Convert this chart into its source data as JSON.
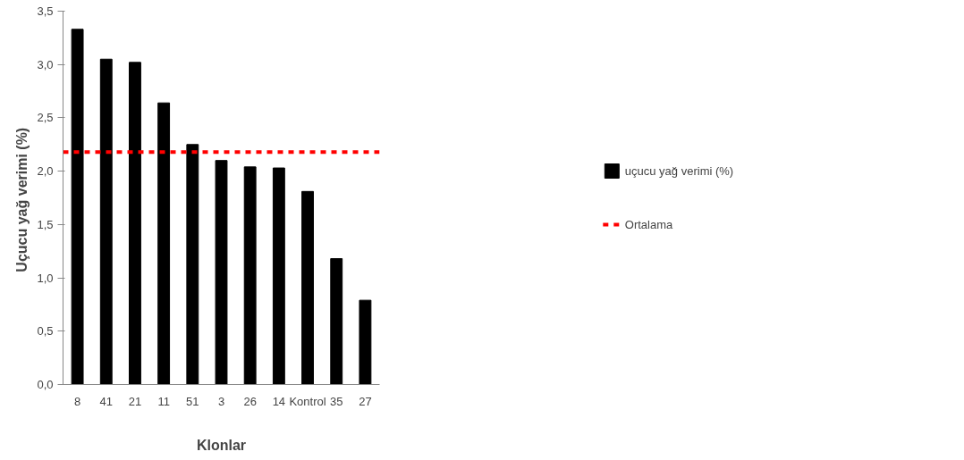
{
  "chart_data": {
    "type": "bar",
    "xlabel": "Klonlar",
    "ylabel": "Uçucu yağ verimi  (%)",
    "categories": [
      "8",
      "41",
      "21",
      "11",
      "51",
      "3",
      "26",
      "14",
      "Kontrol",
      "35",
      "27"
    ],
    "series": [
      {
        "name": "uçucu yağ verimi (%)",
        "color": "#000000",
        "values": [
          3.33,
          3.05,
          3.02,
          2.64,
          2.25,
          2.1,
          2.04,
          2.03,
          1.81,
          1.18,
          0.79
        ]
      }
    ],
    "ylim": [
      0,
      3.5
    ],
    "yticks": [
      {
        "value": 0,
        "label": "0,0"
      },
      {
        "value": 0.5,
        "label": "0,5"
      },
      {
        "value": 1,
        "label": "1,0"
      },
      {
        "value": 1.5,
        "label": "1,5"
      },
      {
        "value": 2,
        "label": "2,0"
      },
      {
        "value": 2.5,
        "label": "2,5"
      },
      {
        "value": 3,
        "label": "3,0"
      },
      {
        "value": 3.5,
        "label": "3,5"
      }
    ],
    "ref_lines": [
      {
        "axis": "y",
        "value": 2.18,
        "label": "Ortalama",
        "color": "#ff0000",
        "line_style": "dashed"
      }
    ],
    "legend": "right",
    "grid": false
  }
}
